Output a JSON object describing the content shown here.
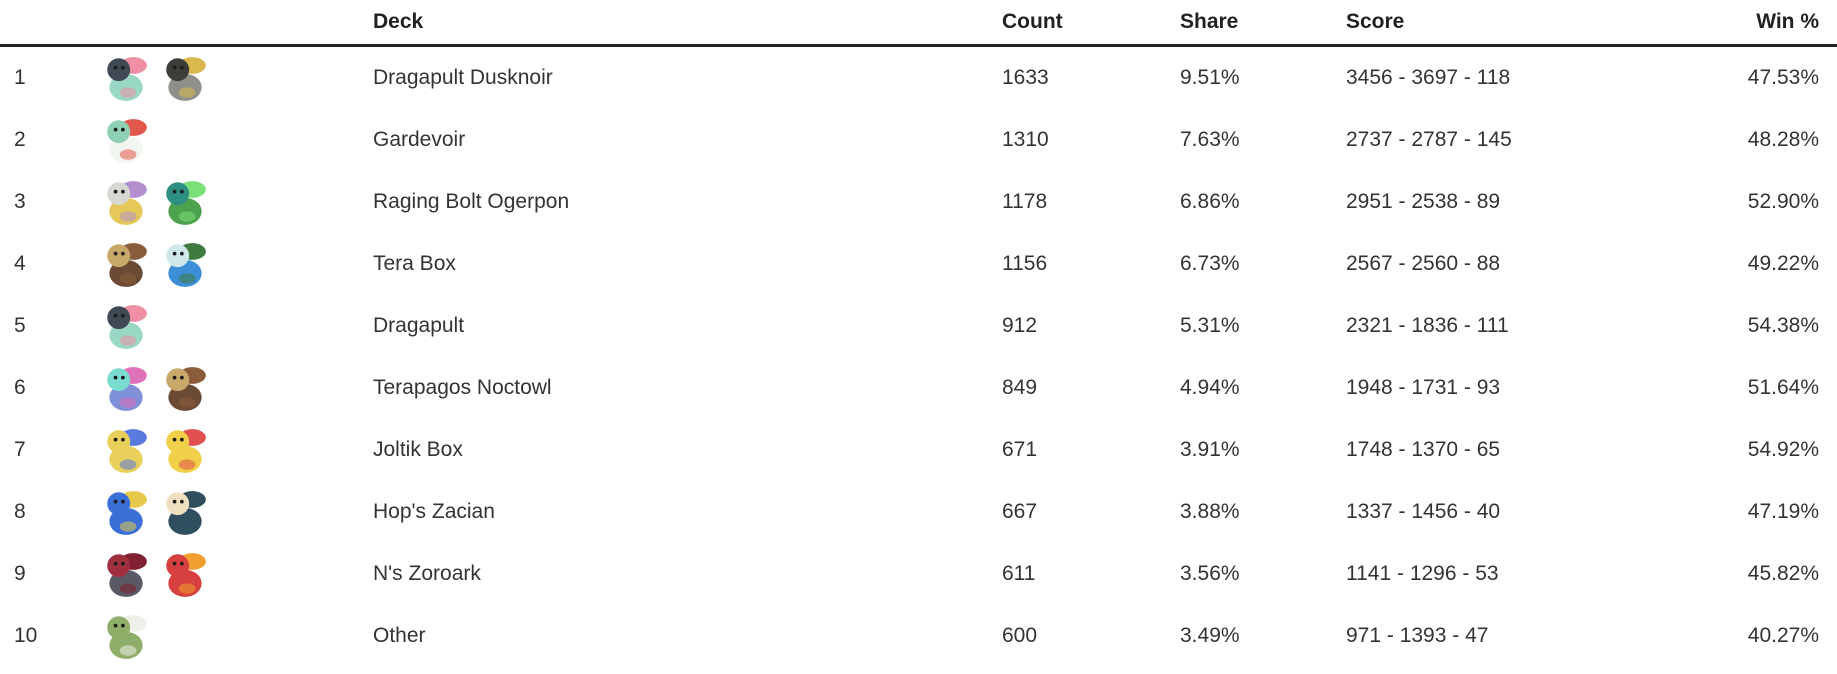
{
  "table": {
    "headers": {
      "rank": "",
      "icons": "",
      "deck": "Deck",
      "count": "Count",
      "share": "Share",
      "score": "Score",
      "win": "Win %"
    },
    "rows": [
      {
        "rank": "1",
        "deck": "Dragapult Dusknoir",
        "count": "1633",
        "share": "9.51%",
        "score": "3456 - 3697 - 118",
        "win": "47.53%",
        "sprites": [
          "dragapult",
          "dusknoir"
        ]
      },
      {
        "rank": "2",
        "deck": "Gardevoir",
        "count": "1310",
        "share": "7.63%",
        "score": "2737 - 2787 - 145",
        "win": "48.28%",
        "sprites": [
          "gardevoir"
        ]
      },
      {
        "rank": "3",
        "deck": "Raging Bolt Ogerpon",
        "count": "1178",
        "share": "6.86%",
        "score": "2951 - 2538 - 89",
        "win": "52.90%",
        "sprites": [
          "raging-bolt",
          "ogerpon-teal"
        ]
      },
      {
        "rank": "4",
        "deck": "Tera Box",
        "count": "1156",
        "share": "6.73%",
        "score": "2567 - 2560 - 88",
        "win": "49.22%",
        "sprites": [
          "noctowl",
          "ogerpon-wellspring"
        ]
      },
      {
        "rank": "5",
        "deck": "Dragapult",
        "count": "912",
        "share": "5.31%",
        "score": "2321 - 1836 - 111",
        "win": "54.38%",
        "sprites": [
          "dragapult"
        ]
      },
      {
        "rank": "6",
        "deck": "Terapagos Noctowl",
        "count": "849",
        "share": "4.94%",
        "score": "1948 - 1731 - 93",
        "win": "51.64%",
        "sprites": [
          "terapagos",
          "noctowl"
        ]
      },
      {
        "rank": "7",
        "deck": "Joltik Box",
        "count": "671",
        "share": "3.91%",
        "score": "1748 - 1370 - 65",
        "win": "54.92%",
        "sprites": [
          "joltik",
          "pikachu"
        ]
      },
      {
        "rank": "8",
        "deck": "Hop's Zacian",
        "count": "667",
        "share": "3.88%",
        "score": "1337 - 1456 - 40",
        "win": "47.19%",
        "sprites": [
          "zacian",
          "snorlax"
        ]
      },
      {
        "rank": "9",
        "deck": "N's Zoroark",
        "count": "611",
        "share": "3.56%",
        "score": "1141 - 1296 - 53",
        "win": "45.82%",
        "sprites": [
          "zoroark",
          "darmanitan"
        ]
      },
      {
        "rank": "10",
        "deck": "Other",
        "count": "600",
        "share": "3.49%",
        "score": "971 - 1393 - 47",
        "win": "40.27%",
        "sprites": [
          "substitute"
        ]
      }
    ]
  },
  "sprite_palettes": {
    "dragapult": {
      "body": "#9ad8c6",
      "head": "#3f4a55",
      "accent": "#ee8fa4"
    },
    "dusknoir": {
      "body": "#8f9089",
      "head": "#3c3c38",
      "accent": "#d9b94e"
    },
    "gardevoir": {
      "body": "#f2f6f0",
      "head": "#8fd0b2",
      "accent": "#e2574c"
    },
    "raging-bolt": {
      "body": "#e5c857",
      "head": "#d8d8d2",
      "accent": "#b38fd0"
    },
    "ogerpon-teal": {
      "body": "#4da24d",
      "head": "#2e8f83",
      "accent": "#7ce07a"
    },
    "noctowl": {
      "body": "#6b4a33",
      "head": "#c9a96a",
      "accent": "#8a5c3c"
    },
    "ogerpon-wellspring": {
      "body": "#3c8fd6",
      "head": "#cfe8ea",
      "accent": "#3f7a3f"
    },
    "terapagos": {
      "body": "#7f8fd8",
      "head": "#7adbd0",
      "accent": "#e070b8"
    },
    "joltik": {
      "body": "#e8d05a",
      "head": "#e8d05a",
      "accent": "#5a7ae0"
    },
    "pikachu": {
      "body": "#f0d048",
      "head": "#f0d048",
      "accent": "#e05050"
    },
    "zacian": {
      "body": "#3a6fd8",
      "head": "#3a6fd8",
      "accent": "#e8c84a"
    },
    "snorlax": {
      "body": "#2f4f5f",
      "head": "#f0e0c0",
      "accent": "#2f4f5f"
    },
    "zoroark": {
      "body": "#5a5a66",
      "head": "#a03040",
      "accent": "#802030"
    },
    "darmanitan": {
      "body": "#d84040",
      "head": "#d84040",
      "accent": "#f0a030"
    },
    "substitute": {
      "body": "#8fae6a",
      "head": "#8fae6a",
      "accent": "#f0f0e8"
    }
  },
  "colors": {
    "background": "#ffffff",
    "header_text": "#222222",
    "body_text": "#333333",
    "header_divider": "#222222"
  }
}
